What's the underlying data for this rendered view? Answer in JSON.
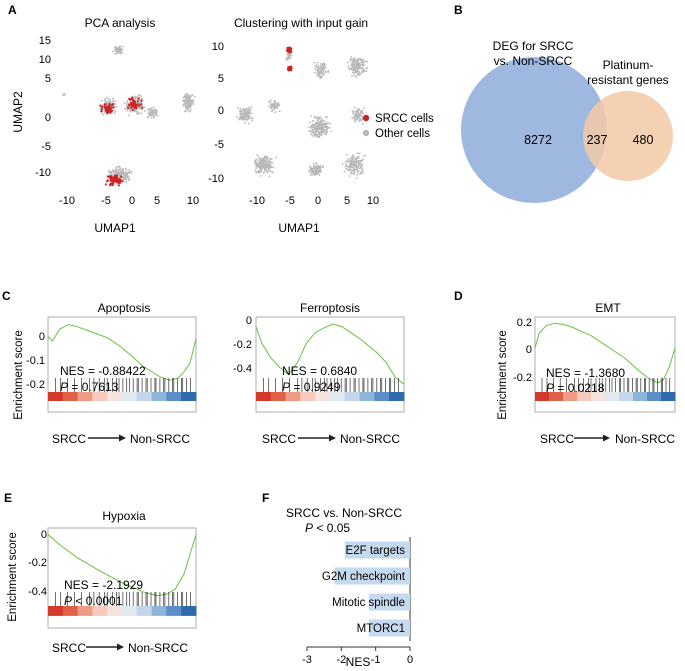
{
  "panels": {
    "A": {
      "letter": "A",
      "left_title": "PCA analysis",
      "right_title": "Clustering with input gain",
      "ylabel": "UMAP2",
      "xlabel": "UMAP1",
      "left_yticks": [
        "15",
        "10",
        "5",
        "0",
        "-5",
        "-10"
      ],
      "left_xticks": [
        "-10",
        "-5",
        "0",
        "5",
        "10"
      ],
      "right_yticks": [
        "10",
        "5",
        "0",
        "-5",
        "-10"
      ],
      "right_xticks": [
        "-10",
        "-5",
        "0",
        "5",
        "10"
      ],
      "legend": [
        {
          "label": "SRCC cells",
          "color": "#cc2222"
        },
        {
          "label": "Other cells",
          "color": "#b8b8b8"
        }
      ]
    },
    "B": {
      "letter": "B",
      "left_label_line1": "DEG for SRCC",
      "left_label_line2": "vs. Non-SRCC",
      "right_label_line1": "Platinum-",
      "right_label_line2": "resistant genes",
      "left_only": "8272",
      "overlap": "237",
      "right_only": "480",
      "left_color": "#9fb8e0",
      "right_color": "#f3c9a6"
    },
    "C": {
      "letter": "C"
    },
    "D": {
      "letter": "D"
    },
    "E": {
      "letter": "E"
    },
    "F": {
      "letter": "F"
    },
    "gsea_common": {
      "ylabel": "Enrichment score",
      "from_label": "SRCC",
      "to_label": "Non-SRCC"
    }
  },
  "chart_data": [
    {
      "id": "apoptosis",
      "type": "line",
      "title": "Apoptosis",
      "yticks": [
        "0",
        "-0.1",
        "-0.2"
      ],
      "ylim": [
        -0.24,
        0.09
      ],
      "nes_text": "NES = -0.88422",
      "p_label": "P",
      "p_text": " = 0.7613",
      "x": [
        0,
        0.03,
        0.08,
        0.14,
        0.2,
        0.26,
        0.32,
        0.4,
        0.48,
        0.56,
        0.64,
        0.7,
        0.76,
        0.82,
        0.88,
        0.92,
        0.96,
        1.0
      ],
      "y": [
        0,
        -0.02,
        0.035,
        0.055,
        0.045,
        0.03,
        0.015,
        -0.005,
        -0.04,
        -0.085,
        -0.135,
        -0.16,
        -0.185,
        -0.2,
        -0.19,
        -0.16,
        -0.12,
        -0.01
      ]
    },
    {
      "id": "ferroptosis",
      "type": "line",
      "title": "Ferroptosis",
      "yticks": [
        "0",
        "-0.2",
        "-0.4"
      ],
      "ylim": [
        -0.52,
        0.08
      ],
      "nes_text": "NES = 0.6840",
      "p_label": "P",
      "p_text": " = 0.9249",
      "x": [
        0,
        0.04,
        0.1,
        0.16,
        0.22,
        0.28,
        0.34,
        0.4,
        0.46,
        0.52,
        0.58,
        0.64,
        0.7,
        0.76,
        0.82,
        0.88,
        0.94,
        1.0
      ],
      "y": [
        0,
        -0.14,
        -0.26,
        -0.34,
        -0.4,
        -0.3,
        -0.14,
        -0.05,
        -0.01,
        0.02,
        0.0,
        -0.05,
        -0.1,
        -0.16,
        -0.22,
        -0.3,
        -0.42,
        -0.48
      ]
    },
    {
      "id": "emt",
      "type": "line",
      "title": "EMT",
      "yticks": [
        "0.2",
        "0",
        "-0.2"
      ],
      "ylim": [
        -0.33,
        0.25
      ],
      "nes_text": "NES = -1.3680",
      "p_label": "P",
      "p_text": " = 0.0218",
      "x": [
        0,
        0.03,
        0.08,
        0.14,
        0.2,
        0.26,
        0.32,
        0.4,
        0.48,
        0.56,
        0.64,
        0.7,
        0.76,
        0.82,
        0.88,
        0.92,
        0.96,
        1.0
      ],
      "y": [
        0,
        0.12,
        0.18,
        0.2,
        0.19,
        0.17,
        0.14,
        0.1,
        0.04,
        -0.02,
        -0.08,
        -0.14,
        -0.2,
        -0.25,
        -0.28,
        -0.25,
        -0.15,
        0.0
      ]
    },
    {
      "id": "hypoxia",
      "type": "line",
      "title": "Hypoxia",
      "yticks": [
        "0",
        "-0.2",
        "-0.4"
      ],
      "ylim": [
        -0.55,
        0.05
      ],
      "nes_text": "NES = -2.1929",
      "p_label": "P",
      "p_text": " < 0.0001",
      "x": [
        0,
        0.03,
        0.08,
        0.14,
        0.2,
        0.26,
        0.32,
        0.4,
        0.48,
        0.56,
        0.64,
        0.7,
        0.74,
        0.8,
        0.86,
        0.92,
        0.96,
        1.0
      ],
      "y": [
        0,
        -0.03,
        -0.08,
        -0.13,
        -0.18,
        -0.22,
        -0.26,
        -0.31,
        -0.36,
        -0.4,
        -0.44,
        -0.46,
        -0.47,
        -0.46,
        -0.42,
        -0.3,
        -0.15,
        0.0
      ]
    },
    {
      "id": "nes_bar",
      "type": "bar",
      "orientation": "horizontal",
      "title": "SRCC vs. Non-SRCC",
      "subtitle_label": "P",
      "subtitle_text": " < 0.05",
      "xlabel": "NES",
      "xlim": [
        -3,
        0
      ],
      "xticks": [
        "-3",
        "-2",
        "-1",
        "0"
      ],
      "categories": [
        "E2F targets",
        "G2M checkpoint",
        "Mitotic spindle",
        "MTORC1"
      ],
      "values": [
        -1.9,
        -2.2,
        -1.2,
        -1.2
      ],
      "color": "#c5d9ef"
    }
  ]
}
